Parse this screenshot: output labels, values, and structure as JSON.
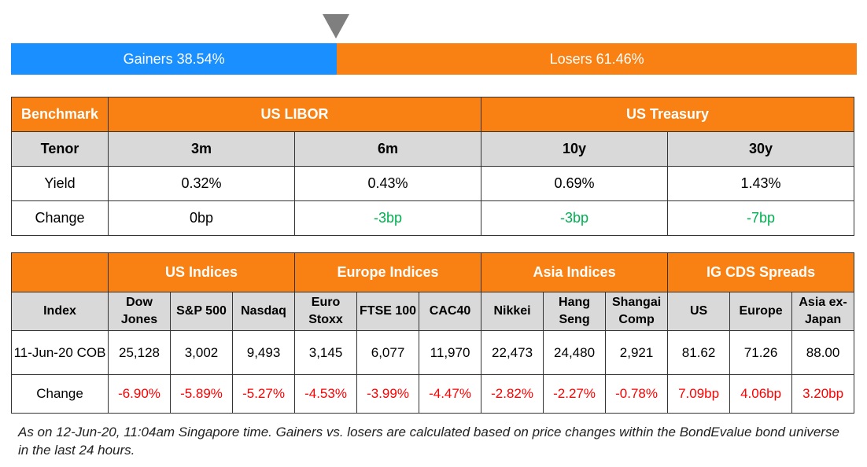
{
  "market_bar": {
    "gainers_label": "Gainers 38.54%",
    "losers_label": "Losers 61.46%",
    "gainers_pct": 38.54,
    "losers_pct": 61.46,
    "colors": {
      "gainers": "#1a8fff",
      "losers": "#f98012",
      "marker": "#7f7f7f"
    }
  },
  "benchmark_table": {
    "corner": "Benchmark",
    "groups": [
      "US LIBOR",
      "US Treasury"
    ],
    "tenor_label": "Tenor",
    "tenors": [
      "3m",
      "6m",
      "10y",
      "30y"
    ],
    "yield_label": "Yield",
    "yields": [
      "0.32%",
      "0.43%",
      "0.69%",
      "1.43%"
    ],
    "change_label": "Change",
    "changes": [
      "0bp",
      "-3bp",
      "-3bp",
      "-7bp"
    ]
  },
  "indices_table": {
    "groups": [
      "US Indices",
      "Europe Indices",
      "Asia Indices",
      "IG CDS Spreads"
    ],
    "index_label": "Index",
    "columns": [
      [
        "Dow",
        "Jones"
      ],
      [
        "S&P 500"
      ],
      [
        "Nasdaq"
      ],
      [
        "Euro",
        "Stoxx"
      ],
      [
        "FTSE 100"
      ],
      [
        "CAC40"
      ],
      [
        "Nikkei"
      ],
      [
        "Hang",
        "Seng"
      ],
      [
        "Shangai",
        "Comp"
      ],
      [
        "US"
      ],
      [
        "Europe"
      ],
      [
        "Asia ex-",
        "Japan"
      ]
    ],
    "date_label": "11-Jun-20 COB",
    "values": [
      "25,128",
      "3,002",
      "9,493",
      "3,145",
      "6,077",
      "11,970",
      "22,473",
      "24,480",
      "2,921",
      "81.62",
      "71.26",
      "88.00"
    ],
    "change_label": "Change",
    "changes": [
      "-6.90%",
      "-5.89%",
      "-5.27%",
      "-4.53%",
      "-3.99%",
      "-4.47%",
      "-2.82%",
      "-2.27%",
      "-0.78%",
      "7.09bp",
      "4.06bp",
      "3.20bp"
    ]
  },
  "colors": {
    "header_orange": "#f98012",
    "subheader_gray": "#d9d9d9",
    "positive_green": "#00b050",
    "negative_red": "#ff0000"
  },
  "footnote": "As on 12-Jun-20, 11:04am Singapore time. Gainers vs. losers are calculated based on price changes within the BondEvalue bond universe in the last 24 hours."
}
